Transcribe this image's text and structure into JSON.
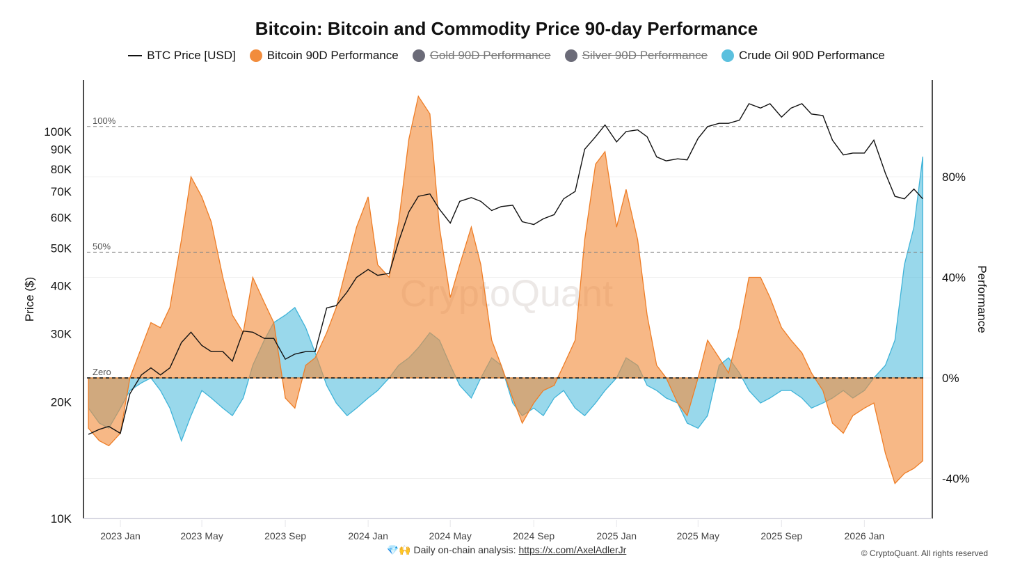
{
  "chart_data": {
    "type": "area",
    "title": "Bitcoin: Bitcoin and Commodity Price 90-day Performance",
    "legend": [
      {
        "name": "BTC Price [USD]",
        "color": "#111111",
        "active": true,
        "kind": "line"
      },
      {
        "name": "Bitcoin 90D Performance",
        "color": "#f28c3c",
        "active": true,
        "kind": "dot"
      },
      {
        "name": "Gold 90D Performance",
        "color": "#6b6b78",
        "active": false,
        "kind": "dot"
      },
      {
        "name": "Silver 90D Performance",
        "color": "#6b6b78",
        "active": false,
        "kind": "dot"
      },
      {
        "name": "Crude Oil 90D Performance",
        "color": "#5bc0de",
        "active": true,
        "kind": "dot"
      }
    ],
    "ylabel_left": "Price ($)",
    "ylabel_right": "Performance",
    "left_axis": {
      "scale": "log",
      "range": [
        10000,
        136000
      ],
      "ticks": [
        10000,
        20000,
        30000,
        40000,
        50000,
        60000,
        70000,
        80000,
        90000,
        100000
      ],
      "tick_labels": [
        "10K",
        "20K",
        "30K",
        "40K",
        "50K",
        "60K",
        "70K",
        "80K",
        "90K",
        "100K"
      ]
    },
    "right_axis": {
      "range": [
        -56,
        118
      ],
      "ticks": [
        -40,
        0,
        40,
        80
      ],
      "tick_labels": [
        "-40%",
        "0%",
        "40%",
        "80%"
      ]
    },
    "reference_lines": [
      {
        "value": 100,
        "label": "100%"
      },
      {
        "value": 50,
        "label": "50%"
      },
      {
        "value": 0,
        "label": "Zero"
      }
    ],
    "x_ticks": [
      "2023-01-01",
      "2023-05-01",
      "2023-09-01",
      "2024-01-01",
      "2024-05-01",
      "2024-09-01",
      "2025-01-01",
      "2025-05-01",
      "2025-09-01",
      "2026-01-01"
    ],
    "x_tick_labels": [
      "2023 Jan",
      "2023 May",
      "2023 Sep",
      "2024 Jan",
      "2024 May",
      "2024 Sep",
      "2025 Jan",
      "2025 May",
      "2025 Sep",
      "2026 Jan"
    ],
    "x": [
      "2022-11-15",
      "2022-12-01",
      "2022-12-15",
      "2023-01-01",
      "2023-01-15",
      "2023-02-01",
      "2023-02-15",
      "2023-03-01",
      "2023-03-15",
      "2023-04-01",
      "2023-04-15",
      "2023-05-01",
      "2023-05-15",
      "2023-06-01",
      "2023-06-15",
      "2023-07-01",
      "2023-07-15",
      "2023-08-01",
      "2023-08-15",
      "2023-09-01",
      "2023-09-15",
      "2023-10-01",
      "2023-10-15",
      "2023-11-01",
      "2023-11-15",
      "2023-12-01",
      "2023-12-15",
      "2024-01-01",
      "2024-01-15",
      "2024-02-01",
      "2024-02-15",
      "2024-03-01",
      "2024-03-15",
      "2024-04-01",
      "2024-04-15",
      "2024-05-01",
      "2024-05-15",
      "2024-06-01",
      "2024-06-15",
      "2024-07-01",
      "2024-07-15",
      "2024-08-01",
      "2024-08-15",
      "2024-09-01",
      "2024-09-15",
      "2024-10-01",
      "2024-10-15",
      "2024-11-01",
      "2024-11-15",
      "2024-12-01",
      "2024-12-15",
      "2025-01-01",
      "2025-01-15",
      "2025-02-01",
      "2025-02-15",
      "2025-03-01",
      "2025-03-15",
      "2025-04-01",
      "2025-04-15",
      "2025-05-01",
      "2025-05-15",
      "2025-06-01",
      "2025-06-15",
      "2025-07-01",
      "2025-07-15",
      "2025-08-01",
      "2025-08-15",
      "2025-09-01",
      "2025-09-15",
      "2025-10-01",
      "2025-10-15",
      "2025-11-01",
      "2025-11-15",
      "2025-12-01",
      "2025-12-15",
      "2026-01-01",
      "2026-01-15",
      "2026-02-01",
      "2026-02-15",
      "2026-03-01",
      "2026-03-15",
      "2026-03-28"
    ],
    "series": [
      {
        "name": "BTC Price [USD]",
        "axis": "left",
        "values": [
          16500,
          17000,
          17300,
          16600,
          21000,
          23500,
          24500,
          23500,
          24500,
          28500,
          30300,
          28000,
          27000,
          27000,
          25500,
          30500,
          30300,
          29200,
          29200,
          25800,
          26600,
          27000,
          27000,
          35000,
          35500,
          38500,
          42000,
          44000,
          42500,
          43000,
          52000,
          62000,
          68000,
          69000,
          63000,
          58000,
          66000,
          67500,
          66000,
          62500,
          64000,
          64500,
          58500,
          57500,
          59500,
          61000,
          67000,
          70000,
          90000,
          97000,
          104000,
          94000,
          100000,
          101000,
          97000,
          86000,
          84000,
          85000,
          84500,
          96000,
          103000,
          105000,
          105000,
          107000,
          118000,
          115000,
          118000,
          109000,
          115000,
          118000,
          111000,
          110000,
          95000,
          87000,
          88000,
          88000,
          95000,
          78000,
          68000,
          67000,
          71000,
          67000
        ]
      },
      {
        "name": "Bitcoin 90D Performance",
        "axis": "right",
        "values": [
          -20,
          -25,
          -27,
          -22,
          0,
          12,
          22,
          20,
          28,
          55,
          80,
          72,
          62,
          40,
          25,
          18,
          40,
          30,
          22,
          -8,
          -12,
          5,
          8,
          18,
          28,
          45,
          60,
          72,
          45,
          40,
          62,
          95,
          112,
          105,
          60,
          32,
          45,
          60,
          45,
          15,
          5,
          -8,
          -18,
          -10,
          -5,
          -3,
          5,
          15,
          55,
          85,
          90,
          60,
          75,
          55,
          25,
          5,
          0,
          -10,
          -15,
          0,
          15,
          8,
          2,
          20,
          40,
          40,
          32,
          20,
          15,
          10,
          2,
          -5,
          -18,
          -22,
          -15,
          -12,
          -10,
          -30,
          -42,
          -38,
          -36,
          -33
        ]
      },
      {
        "name": "Crude Oil 90D Performance",
        "axis": "right",
        "values": [
          -12,
          -18,
          -20,
          -12,
          -5,
          -2,
          0,
          -5,
          -12,
          -25,
          -15,
          -5,
          -8,
          -12,
          -15,
          -8,
          5,
          15,
          22,
          25,
          28,
          20,
          10,
          -3,
          -10,
          -15,
          -12,
          -8,
          -5,
          0,
          5,
          8,
          12,
          18,
          15,
          5,
          -3,
          -8,
          0,
          8,
          5,
          -10,
          -15,
          -12,
          -15,
          -8,
          -5,
          -12,
          -15,
          -10,
          -5,
          0,
          8,
          5,
          -3,
          -5,
          -8,
          -10,
          -18,
          -20,
          -15,
          5,
          8,
          2,
          -5,
          -10,
          -8,
          -5,
          -5,
          -8,
          -12,
          -10,
          -8,
          -5,
          -8,
          -5,
          0,
          5,
          15,
          45,
          60,
          88
        ]
      }
    ]
  },
  "watermark": "CryptoQuant",
  "footer": {
    "emoji": "💎🙌",
    "text": "Daily on-chain analysis:",
    "link": "https://x.com/AxelAdlerJr",
    "copyright": "© CryptoQuant. All rights reserved"
  }
}
